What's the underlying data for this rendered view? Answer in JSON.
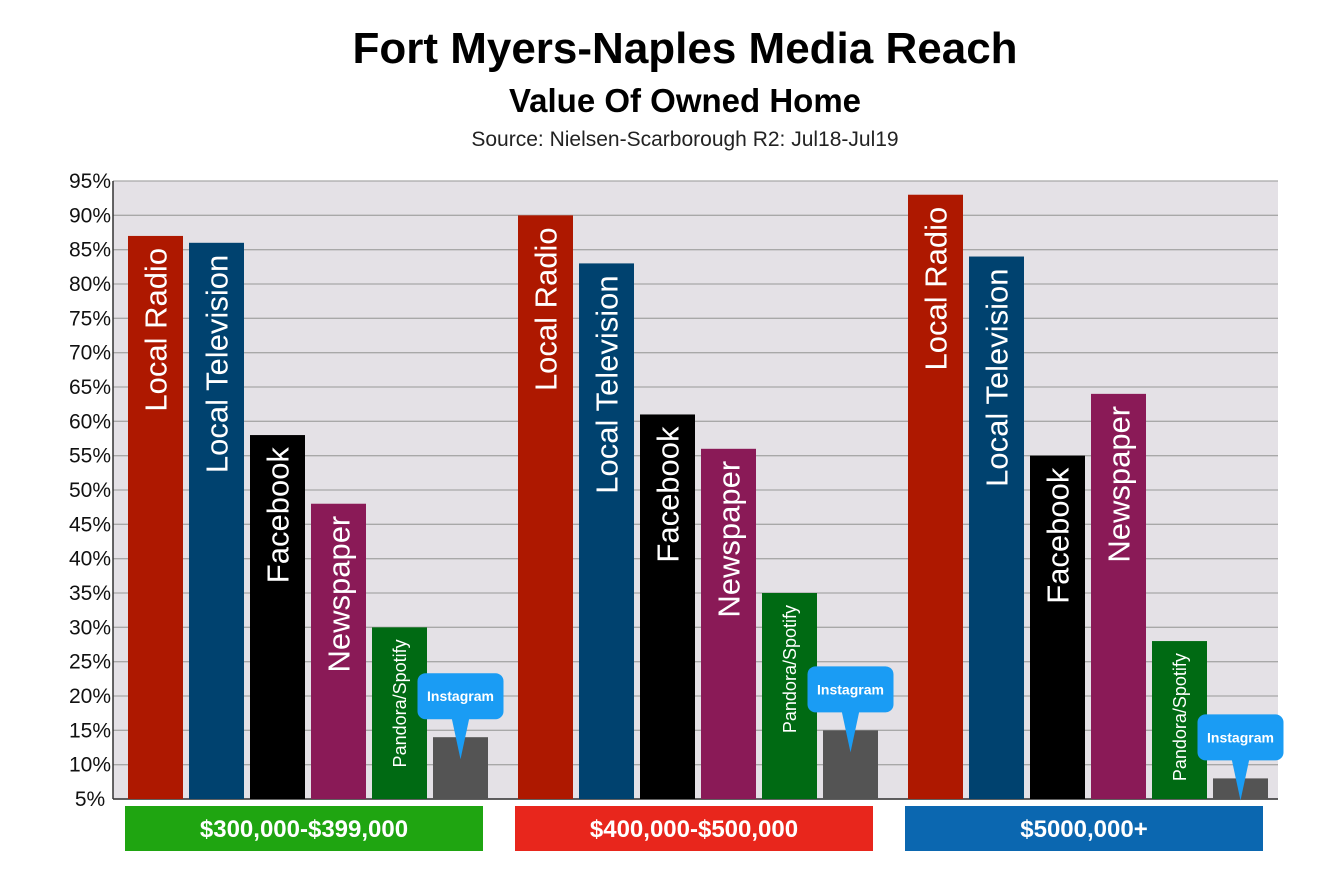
{
  "chart_data": {
    "type": "bar",
    "title": "Fort Myers-Naples Media Reach",
    "subtitle": "Value Of Owned Home",
    "source": "Source: Nielsen-Scarborough R2: Jul18-Jul19",
    "ylim": [
      5,
      95
    ],
    "yticks": [
      "95%",
      "90%",
      "85%",
      "80%",
      "75%",
      "70%",
      "65%",
      "60%",
      "55%",
      "50%",
      "45%",
      "40%",
      "35%",
      "30%",
      "25%",
      "20%",
      "15%",
      "10%",
      "5%"
    ],
    "grid": true,
    "legend": "none",
    "categories": [
      "$300,000-$399,000",
      "$400,000-$500,000",
      "$5000,000+"
    ],
    "category_colors": [
      "#1fa511",
      "#e8261c",
      "#0b67b0"
    ],
    "series": [
      {
        "name": "Local Radio",
        "color": "#ae1800",
        "values": [
          87,
          90,
          93
        ]
      },
      {
        "name": "Local Television",
        "color": "#00426f",
        "values": [
          86,
          83,
          84
        ]
      },
      {
        "name": "Facebook",
        "color": "#000000",
        "values": [
          58,
          61,
          55
        ]
      },
      {
        "name": "Newspaper",
        "color": "#8a1a57",
        "values": [
          48,
          56,
          64
        ]
      },
      {
        "name": "Pandora/Spotify",
        "color": "#006a13",
        "values": [
          30,
          35,
          28
        ]
      },
      {
        "name": "Instagram",
        "color": "#545454",
        "values": [
          14,
          15,
          8
        ]
      }
    ],
    "callout_color": "#1a9cf4",
    "plot_background": "#e4e1e6",
    "grid_color": "#a8a8a8"
  }
}
